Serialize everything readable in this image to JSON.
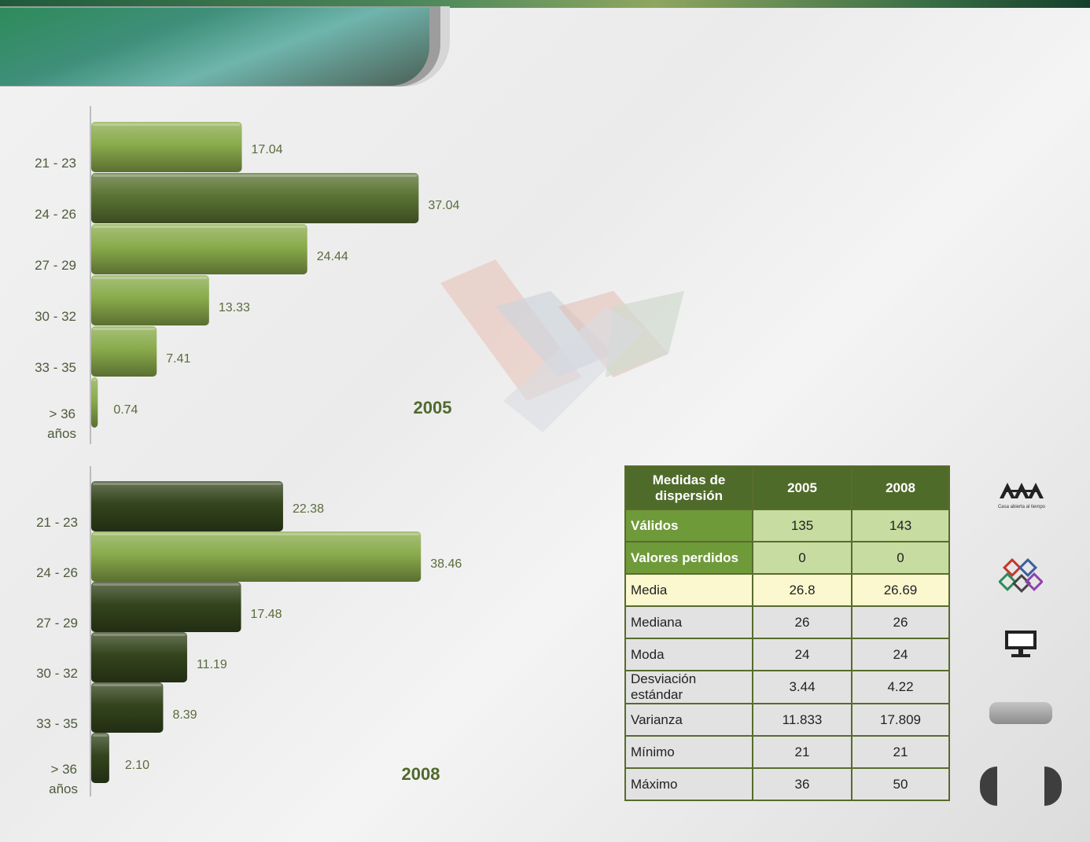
{
  "chart_data": [
    {
      "type": "bar",
      "orientation": "horizontal",
      "annotation": "2005",
      "categories": [
        "21 - 23",
        "24 - 26",
        "27 - 29",
        "30 - 32",
        "33 - 35",
        "> 36 años"
      ],
      "values": [
        17.04,
        37.04,
        24.44,
        13.33,
        7.41,
        0.74
      ],
      "value_labels": [
        "17.04",
        "37.04",
        "24.44",
        "13.33",
        "7.41",
        "0.74"
      ],
      "bar_colors": [
        "#8aab4c",
        "#5b7434",
        "#8aab4c",
        "#8aab4c",
        "#8aab4c",
        "#8aab4c"
      ],
      "xlim": [
        0,
        40
      ],
      "grid": false
    },
    {
      "type": "bar",
      "orientation": "horizontal",
      "annotation": "2008",
      "categories": [
        "21 - 23",
        "24 - 26",
        "27 - 29",
        "30 - 32",
        "33 - 35",
        "> 36 años"
      ],
      "values": [
        22.38,
        38.46,
        17.48,
        11.19,
        8.39,
        2.1
      ],
      "value_labels": [
        "22.38",
        "38.46",
        "17.48",
        "11.19",
        "8.39",
        "2.10"
      ],
      "bar_colors": [
        "#34451d",
        "#8aab4c",
        "#34451d",
        "#34451d",
        "#34451d",
        "#34451d"
      ],
      "xlim": [
        0,
        40
      ],
      "grid": false
    }
  ],
  "table": {
    "header": {
      "measure": "Medidas  de dispersión",
      "y2005": "2005",
      "y2008": "2008"
    },
    "rows": [
      {
        "label": "Válidos",
        "v2005": "135",
        "v2008": "143",
        "style": "green"
      },
      {
        "label": "Valores perdidos",
        "v2005": "0",
        "v2008": "0",
        "style": "green"
      },
      {
        "label": "Media",
        "v2005": "26.8",
        "v2008": "26.69",
        "style": "yellow"
      },
      {
        "label": "Mediana",
        "v2005": "26",
        "v2008": "26",
        "style": "gray"
      },
      {
        "label": "Moda",
        "v2005": "24",
        "v2008": "24",
        "style": "gray"
      },
      {
        "label": "Desviación estándar",
        "v2005": "3.44",
        "v2008": "4.22",
        "style": "gray"
      },
      {
        "label": "Varianza",
        "v2005": "11.833",
        "v2008": "17.809",
        "style": "gray"
      },
      {
        "label": "Mínimo",
        "v2005": "21",
        "v2008": "21",
        "style": "gray"
      },
      {
        "label": "Máximo",
        "v2005": "36",
        "v2008": "50",
        "style": "gray"
      }
    ]
  },
  "sidebar": {
    "logo_text": "UAM",
    "tagline": "Casa abierta al tiempo",
    "icons": [
      "uam-logo-icon",
      "cubes-logo-icon",
      "monitor-icon"
    ]
  }
}
